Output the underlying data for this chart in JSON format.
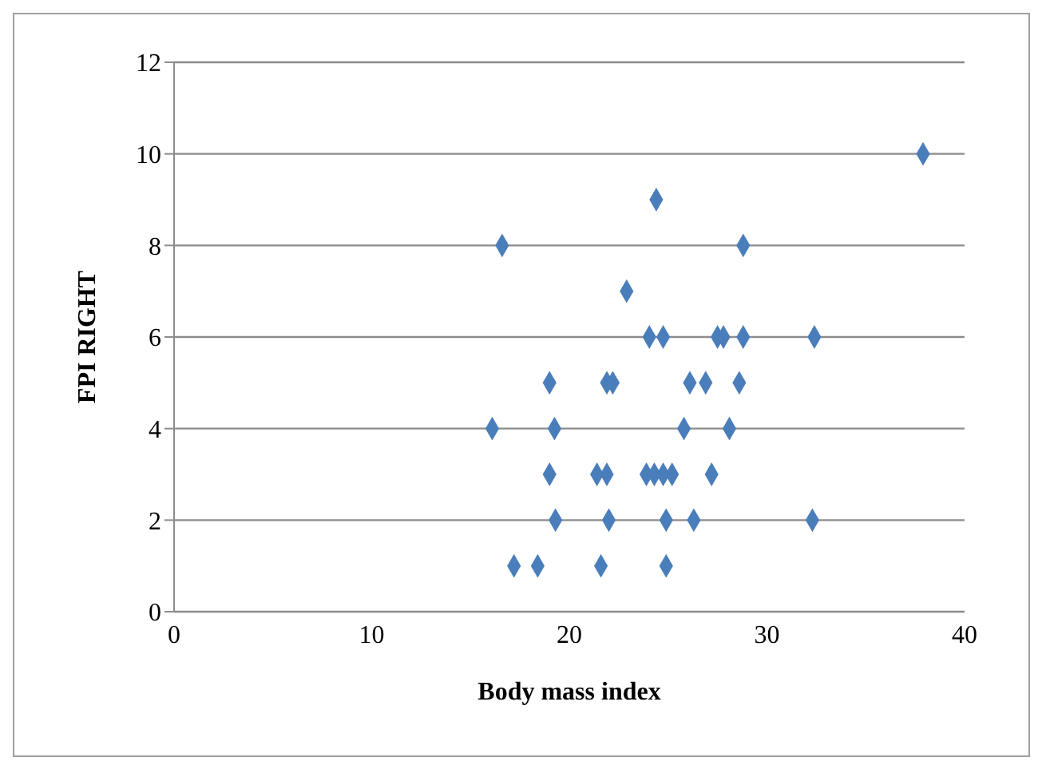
{
  "chart_data": {
    "type": "scatter",
    "xlabel": "Body mass index",
    "ylabel": "FPI RIGHT",
    "marker": "diamond",
    "grid": "y",
    "legend": false,
    "xlim": [
      0,
      40
    ],
    "xticks": [
      0,
      10,
      20,
      30,
      40
    ],
    "ylim": [
      0,
      12
    ],
    "yticks": [
      0,
      2,
      4,
      6,
      8,
      10,
      12
    ],
    "series": [
      {
        "color": "#4a7ebb",
        "x": [
          37.9,
          24.4,
          16.6,
          28.8,
          22.9,
          24.05,
          24.75,
          27.5,
          27.8,
          28.8,
          32.4,
          19.0,
          21.9,
          22.2,
          26.1,
          26.9,
          28.6,
          16.1,
          19.25,
          25.8,
          28.1,
          19.0,
          21.4,
          21.9,
          23.9,
          24.3,
          24.75,
          25.2,
          27.2,
          19.3,
          22.0,
          24.9,
          26.3,
          32.3,
          17.2,
          18.4,
          21.6,
          24.9
        ],
        "values": [
          10,
          9,
          8,
          8,
          7,
          6,
          6,
          6,
          6,
          6,
          6,
          5,
          5,
          5,
          5,
          5,
          5,
          4,
          4,
          4,
          4,
          3,
          3,
          3,
          3,
          3,
          3,
          3,
          3,
          2,
          2,
          2,
          2,
          2,
          1,
          1,
          1,
          1
        ]
      }
    ]
  }
}
